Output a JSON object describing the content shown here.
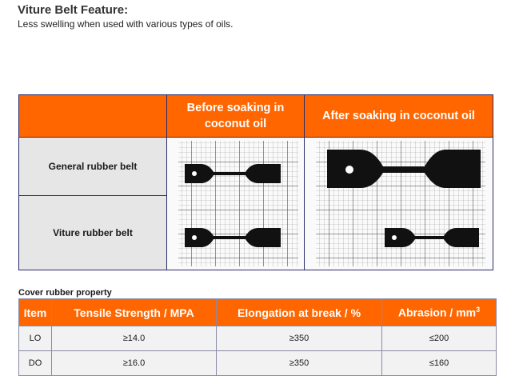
{
  "title": "Viture Belt Feature:",
  "subtitle": "Less swelling when used with various types of oils.",
  "comparison": {
    "headers": [
      "Before soaking in coconut oil",
      "After soaking in coconut oil"
    ],
    "rows": [
      "General rubber belt",
      "Viture rubber belt"
    ]
  },
  "property": {
    "section_title": "Cover rubber property",
    "headers": {
      "item": "Item",
      "tensile": "Tensile Strength / MPA",
      "elongation": "Elongation at break / %",
      "abrasion": "Abrasion / mm",
      "abrasion_sup": "3"
    },
    "rows": [
      {
        "item": "LO",
        "tensile": "≥14.0",
        "elongation": "≥350",
        "abrasion": "≤200"
      },
      {
        "item": "DO",
        "tensile": "≥16.0",
        "elongation": "≥350",
        "abrasion": "≤160"
      }
    ]
  },
  "colors": {
    "accent": "#ff6600",
    "border": "#2a2a6a"
  }
}
